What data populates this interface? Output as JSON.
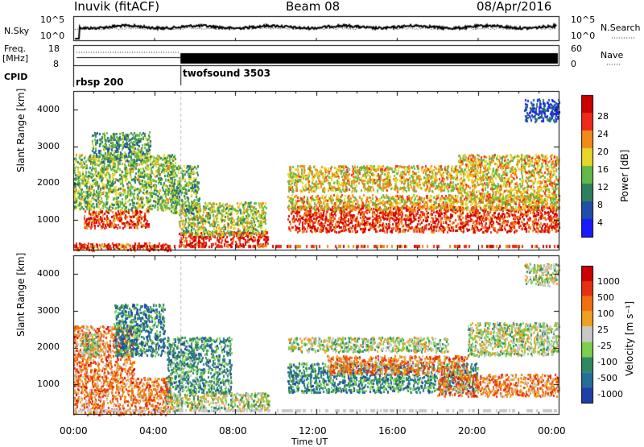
{
  "header": {
    "station": "Inuvik (fitACF)",
    "beam": "Beam 08",
    "date": "08/Apr/2016"
  },
  "side_labels": {
    "nsky": "N.Sky",
    "nsky_tick_high": "10^5",
    "nsky_tick_low": "10^0",
    "nsearch": "N.Search",
    "nsearch_tick_high": "10^5",
    "nsearch_tick_low": "10^0",
    "freq": "Freq.",
    "freq_unit": "[MHz]",
    "freq_tick_high": "18",
    "freq_tick_low": "8",
    "nave": "Nave",
    "nave_tick_high": "60",
    "nave_tick_low": "0",
    "cpid": "CPID"
  },
  "cpid_modes": [
    {
      "label": "rbsp 200",
      "start_hour": 0
    },
    {
      "label": "twofsound 3503",
      "start_hour": 5.3
    }
  ],
  "chart_data": [
    {
      "type": "heatmap",
      "name": "power",
      "ylabel": "Slant Range [km]",
      "yticks": [
        "1000",
        "2000",
        "3000",
        "4000"
      ],
      "ylim": [
        200,
        4500
      ],
      "xlim": [
        0,
        24
      ],
      "xticks": [
        "00:00",
        "04:00",
        "08:00",
        "12:00",
        "16:00",
        "20:00",
        "00:00"
      ],
      "colorbar": {
        "label": "Power [dB]",
        "ticks": [
          "4",
          "8",
          "12",
          "16",
          "20",
          "24",
          "28"
        ],
        "colors": [
          "#1a1aff",
          "#1f4fa8",
          "#2e7f5e",
          "#62b84a",
          "#e6d628",
          "#f08a1a",
          "#ee2a1a",
          "#cc0000"
        ]
      },
      "echo_regions": [
        {
          "t0": 0.0,
          "t1": 4.8,
          "r0": 200,
          "r1": 400,
          "level": 0.82
        },
        {
          "t0": 0.5,
          "t1": 3.7,
          "r0": 800,
          "r1": 1300,
          "level": 0.86
        },
        {
          "t0": 0.0,
          "t1": 5.0,
          "r0": 1300,
          "r1": 2800,
          "level": 0.45
        },
        {
          "t0": 0.9,
          "t1": 3.8,
          "r0": 2600,
          "r1": 3400,
          "level": 0.35
        },
        {
          "t0": 5.2,
          "t1": 9.6,
          "r0": 300,
          "r1": 700,
          "level": 0.92
        },
        {
          "t0": 5.2,
          "t1": 9.5,
          "r0": 600,
          "r1": 1500,
          "level": 0.5
        },
        {
          "t0": 4.8,
          "t1": 6.2,
          "r0": 1200,
          "r1": 2500,
          "level": 0.4
        },
        {
          "t0": 10.6,
          "t1": 24.0,
          "r0": 700,
          "r1": 1400,
          "level": 0.88
        },
        {
          "t0": 10.6,
          "t1": 24.0,
          "r0": 1300,
          "r1": 1700,
          "level": 0.62
        },
        {
          "t0": 10.6,
          "t1": 19.0,
          "r0": 1800,
          "r1": 2500,
          "level": 0.6
        },
        {
          "t0": 19.0,
          "t1": 24.0,
          "r0": 1500,
          "r1": 2800,
          "level": 0.62
        },
        {
          "t0": 22.3,
          "t1": 24.0,
          "r0": 3700,
          "r1": 4300,
          "level": 0.12
        }
      ]
    },
    {
      "type": "heatmap",
      "name": "velocity",
      "ylabel": "Slant Range [km]",
      "yticks": [
        "1000",
        "2000",
        "3000",
        "4000"
      ],
      "ylim": [
        200,
        4500
      ],
      "xlim": [
        0,
        24
      ],
      "xticks": [
        "00:00",
        "04:00",
        "08:00",
        "12:00",
        "16:00",
        "20:00",
        "00:00"
      ],
      "xlabel": "Time UT",
      "colorbar": {
        "label": "Velocity [m s⁻¹]",
        "ticks": [
          "1000",
          "500",
          "100",
          "25",
          "-25",
          "-100",
          "-500",
          "-1000"
        ],
        "colors": [
          "#1f3fa8",
          "#246e9a",
          "#2e8a5e",
          "#7ccf4a",
          "#c8c8c8",
          "#f0a020",
          "#f07010",
          "#e63010",
          "#cc0000"
        ]
      },
      "echo_regions": [
        {
          "t0": 0.0,
          "t1": 4.8,
          "r0": 200,
          "r1": 1200,
          "level": 0.72
        },
        {
          "t0": 0.0,
          "t1": 3.0,
          "r0": 1200,
          "r1": 2600,
          "level": 0.72
        },
        {
          "t0": 0.3,
          "t1": 1.3,
          "r0": 1800,
          "r1": 2400,
          "level": 0.45
        },
        {
          "t0": 2.0,
          "t1": 4.5,
          "r0": 1800,
          "r1": 3200,
          "level": 0.2
        },
        {
          "t0": 4.5,
          "t1": 9.7,
          "r0": 300,
          "r1": 800,
          "level": 0.45
        },
        {
          "t0": 4.6,
          "t1": 7.8,
          "r0": 800,
          "r1": 2300,
          "level": 0.24
        },
        {
          "t0": 10.6,
          "t1": 20.0,
          "r0": 800,
          "r1": 1600,
          "level": 0.22
        },
        {
          "t0": 10.6,
          "t1": 18.5,
          "r0": 1900,
          "r1": 2300,
          "level": 0.45
        },
        {
          "t0": 12.5,
          "t1": 19.5,
          "r0": 1300,
          "r1": 1800,
          "level": 0.72
        },
        {
          "t0": 18.0,
          "t1": 24.0,
          "r0": 700,
          "r1": 1300,
          "level": 0.72
        },
        {
          "t0": 19.5,
          "t1": 24.0,
          "r0": 1800,
          "r1": 2700,
          "level": 0.45
        },
        {
          "t0": 22.3,
          "t1": 24.0,
          "r0": 3700,
          "r1": 4300,
          "level": 0.45
        }
      ]
    }
  ]
}
